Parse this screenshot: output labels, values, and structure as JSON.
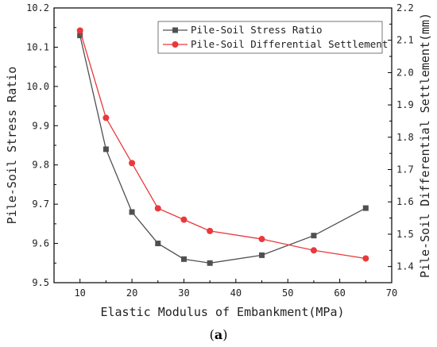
{
  "chart_data": {
    "type": "line",
    "caption_open": "(",
    "caption_letter": "a",
    "caption_close": ")",
    "xlabel": "Elastic Modulus of Embankment(MPa)",
    "ylabel_left": "Pile-Soil Stress Ratio",
    "ylabel_right": "Pile-Soil Differential Settlement(mm)",
    "xlim": [
      5,
      70
    ],
    "xticks": [
      10,
      20,
      30,
      40,
      50,
      60,
      70
    ],
    "ylim_left": [
      9.5,
      10.2
    ],
    "yticks_left": [
      "9.5",
      "9.6",
      "9.7",
      "9.8",
      "9.9",
      "10.0",
      "10.1",
      "10.2"
    ],
    "ylim_right": [
      1.35,
      2.2
    ],
    "yticks_right": [
      "1.4",
      "1.5",
      "1.6",
      "1.7",
      "1.8",
      "1.9",
      "2.0",
      "2.1",
      "2.2"
    ],
    "legend_position": "top-right",
    "grid": false,
    "series": [
      {
        "name": "Pile-Soil Stress Ratio",
        "axis": "left",
        "color": "#505050",
        "marker": "square",
        "x": [
          10,
          15,
          20,
          25,
          30,
          35,
          45,
          55,
          65
        ],
        "y": [
          10.13,
          9.84,
          9.68,
          9.6,
          9.56,
          9.55,
          9.57,
          9.62,
          9.69
        ]
      },
      {
        "name": "Pile-Soil Differential Settlement",
        "axis": "right",
        "color": "#e8393c",
        "marker": "circle",
        "x": [
          10,
          15,
          20,
          25,
          30,
          35,
          45,
          55,
          65
        ],
        "y": [
          2.13,
          1.86,
          1.72,
          1.58,
          1.545,
          1.51,
          1.485,
          1.45,
          1.425
        ]
      }
    ]
  }
}
